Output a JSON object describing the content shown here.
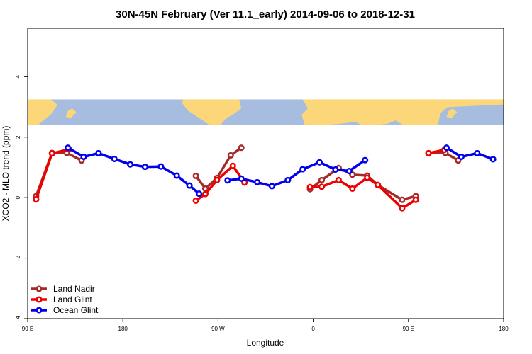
{
  "chart_data": {
    "type": "line",
    "title": "30N-45N February (Ver 11.1_early)   2014-09-06 to 2018-12-31",
    "xlabel": "Longitude",
    "ylabel": "XCO2 - MLO trend (ppm)",
    "xlim": [
      90,
      540
    ],
    "ylim": [
      -4,
      5.6
    ],
    "x_ticks": [
      {
        "value": 90,
        "label": "90 E"
      },
      {
        "value": 180,
        "label": "180"
      },
      {
        "value": 270,
        "label": "90 W"
      },
      {
        "value": 360,
        "label": "0"
      },
      {
        "value": 450,
        "label": "90 E"
      },
      {
        "value": 540,
        "label": "180"
      }
    ],
    "y_ticks": [
      {
        "value": -4,
        "label": "-4"
      },
      {
        "value": -2,
        "label": "-2"
      },
      {
        "value": 0,
        "label": "0"
      },
      {
        "value": 2,
        "label": "2"
      },
      {
        "value": 4,
        "label": "4"
      }
    ],
    "map_strip": {
      "ymin": 2.4,
      "ymax": 3.25,
      "ocean_color": "#a7bddf",
      "land_color": "#fcd77a"
    },
    "legend_position": "bottom-left",
    "series": [
      {
        "name": "Land Nadir",
        "color": "#a52a2a",
        "segments": [
          {
            "x": [
              98,
              113,
              127,
              141
            ],
            "y": [
              0.05,
              1.48,
              1.48,
              1.23
            ]
          },
          {
            "x": [
              249,
              258,
              269,
              282,
              292
            ],
            "y": [
              0.72,
              0.3,
              0.65,
              1.4,
              1.65
            ]
          },
          {
            "x": [
              357,
              368,
              384,
              397,
              411,
              421,
              444,
              457
            ],
            "y": [
              0.28,
              0.58,
              0.98,
              0.76,
              0.73,
              0.42,
              -0.07,
              0.05
            ]
          },
          {
            "x": [
              469,
              485,
              497
            ],
            "y": [
              1.47,
              1.48,
              1.23
            ]
          }
        ]
      },
      {
        "name": "Land Glint",
        "color": "#ee0000",
        "segments": [
          {
            "x": [
              98,
              113,
              129
            ],
            "y": [
              -0.06,
              1.46,
              1.6
            ]
          },
          {
            "x": [
              249,
              258,
              269,
              284,
              295
            ],
            "y": [
              -0.1,
              0.12,
              0.58,
              1.05,
              0.5
            ]
          },
          {
            "x": [
              357,
              368,
              384,
              397,
              411,
              421,
              444,
              457
            ],
            "y": [
              0.35,
              0.36,
              0.58,
              0.3,
              0.66,
              0.42,
              -0.35,
              -0.07
            ]
          },
          {
            "x": [
              469,
              484
            ],
            "y": [
              1.47,
              1.58
            ]
          }
        ]
      },
      {
        "name": "Ocean Glint",
        "color": "#0000ee",
        "segments": [
          {
            "x": [
              128,
              143,
              157,
              172,
              187,
              201,
              216,
              231,
              243,
              252
            ],
            "y": [
              1.65,
              1.35,
              1.47,
              1.28,
              1.1,
              1.02,
              1.03,
              0.73,
              0.4,
              0.13
            ]
          },
          {
            "x": [
              279,
              292,
              307,
              321,
              336,
              350,
              366,
              381,
              394,
              409
            ],
            "y": [
              0.57,
              0.63,
              0.51,
              0.38,
              0.58,
              0.94,
              1.17,
              0.93,
              0.88,
              1.24
            ]
          },
          {
            "x": [
              486,
              500,
              515,
              530
            ],
            "y": [
              1.65,
              1.35,
              1.47,
              1.27
            ]
          }
        ]
      }
    ]
  }
}
